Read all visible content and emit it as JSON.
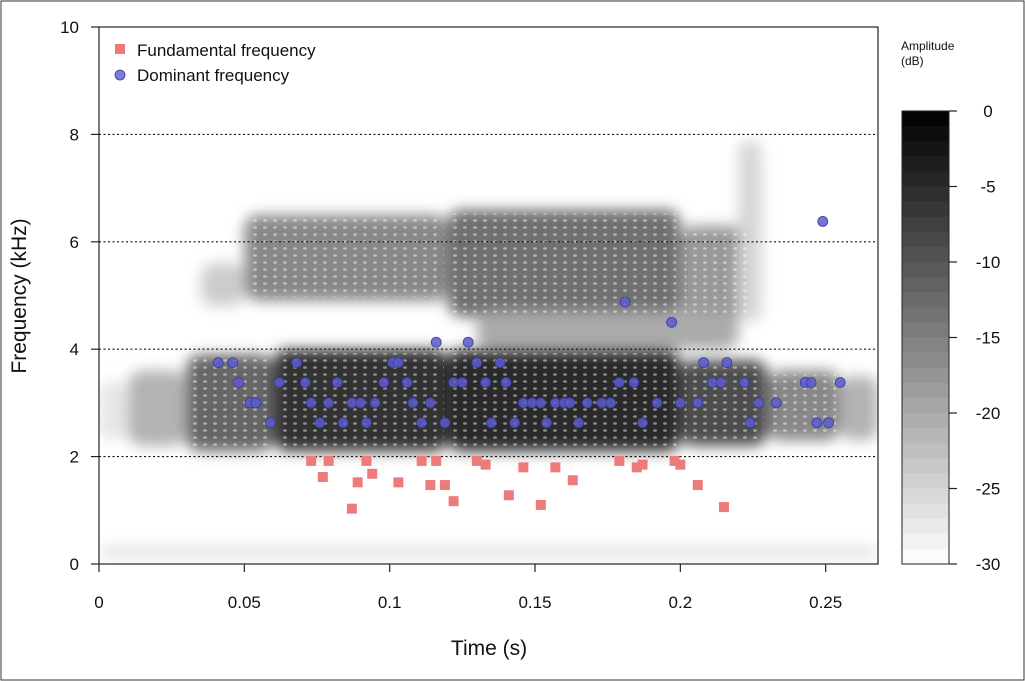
{
  "chart_data": {
    "type": "scatter",
    "background": "spectrogram",
    "xlabel": "Time (s)",
    "ylabel": "Frequency (kHz)",
    "xlim": [
      0,
      0.268
    ],
    "ylim": [
      0,
      10
    ],
    "x_ticks": [
      "0",
      "0.05",
      "0.1",
      "0.15",
      "0.2",
      "0.25"
    ],
    "x_tick_values": [
      0,
      0.05,
      0.1,
      0.15,
      0.2,
      0.25
    ],
    "y_ticks": [
      "0",
      "2",
      "4",
      "6",
      "8",
      "10"
    ],
    "y_tick_values": [
      0,
      2,
      4,
      6,
      8,
      10
    ],
    "gridlines_y": [
      2,
      4,
      6,
      8
    ],
    "grid_style": "dotted horizontal",
    "legend": {
      "placement": "top-left",
      "entries": [
        {
          "label": "Fundamental frequency",
          "marker": "square",
          "color": "#ee7b7b"
        },
        {
          "label": "Dominant frequency",
          "marker": "circle",
          "color": "#5c5ccc"
        }
      ]
    },
    "series": [
      {
        "name": "Fundamental frequency",
        "marker": "square",
        "color": "#ee7b7b",
        "points": [
          [
            0.073,
            1.92
          ],
          [
            0.077,
            1.62
          ],
          [
            0.079,
            1.92
          ],
          [
            0.087,
            1.03
          ],
          [
            0.089,
            1.52
          ],
          [
            0.092,
            1.92
          ],
          [
            0.094,
            1.68
          ],
          [
            0.103,
            1.52
          ],
          [
            0.111,
            1.92
          ],
          [
            0.114,
            1.47
          ],
          [
            0.116,
            1.92
          ],
          [
            0.119,
            1.47
          ],
          [
            0.122,
            1.17
          ],
          [
            0.13,
            1.92
          ],
          [
            0.133,
            1.85
          ],
          [
            0.141,
            1.28
          ],
          [
            0.146,
            1.8
          ],
          [
            0.152,
            1.1
          ],
          [
            0.157,
            1.8
          ],
          [
            0.163,
            1.56
          ],
          [
            0.179,
            1.92
          ],
          [
            0.185,
            1.8
          ],
          [
            0.187,
            1.85
          ],
          [
            0.198,
            1.92
          ],
          [
            0.2,
            1.85
          ],
          [
            0.206,
            1.47
          ],
          [
            0.215,
            1.06
          ]
        ]
      },
      {
        "name": "Dominant frequency",
        "marker": "circle",
        "color": "#5c5ccc",
        "points": [
          [
            0.041,
            3.75
          ],
          [
            0.046,
            3.75
          ],
          [
            0.048,
            3.38
          ],
          [
            0.052,
            3.0
          ],
          [
            0.054,
            3.0
          ],
          [
            0.059,
            2.63
          ],
          [
            0.062,
            3.38
          ],
          [
            0.068,
            3.75
          ],
          [
            0.071,
            3.38
          ],
          [
            0.073,
            3.0
          ],
          [
            0.076,
            2.63
          ],
          [
            0.079,
            3.0
          ],
          [
            0.082,
            3.38
          ],
          [
            0.084,
            2.63
          ],
          [
            0.087,
            3.0
          ],
          [
            0.09,
            3.0
          ],
          [
            0.092,
            2.63
          ],
          [
            0.095,
            3.0
          ],
          [
            0.098,
            3.38
          ],
          [
            0.101,
            3.75
          ],
          [
            0.103,
            3.75
          ],
          [
            0.106,
            3.38
          ],
          [
            0.108,
            3.0
          ],
          [
            0.111,
            2.63
          ],
          [
            0.114,
            3.0
          ],
          [
            0.116,
            4.13
          ],
          [
            0.119,
            2.63
          ],
          [
            0.122,
            3.38
          ],
          [
            0.125,
            3.38
          ],
          [
            0.127,
            4.13
          ],
          [
            0.13,
            3.75
          ],
          [
            0.133,
            3.38
          ],
          [
            0.135,
            2.63
          ],
          [
            0.138,
            3.75
          ],
          [
            0.14,
            3.38
          ],
          [
            0.143,
            2.63
          ],
          [
            0.146,
            3.0
          ],
          [
            0.149,
            3.0
          ],
          [
            0.152,
            3.0
          ],
          [
            0.154,
            2.63
          ],
          [
            0.157,
            3.0
          ],
          [
            0.16,
            3.0
          ],
          [
            0.162,
            3.0
          ],
          [
            0.165,
            2.63
          ],
          [
            0.168,
            3.0
          ],
          [
            0.173,
            3.0
          ],
          [
            0.176,
            3.0
          ],
          [
            0.179,
            3.38
          ],
          [
            0.181,
            4.88
          ],
          [
            0.184,
            3.38
          ],
          [
            0.187,
            2.63
          ],
          [
            0.192,
            3.0
          ],
          [
            0.197,
            4.5
          ],
          [
            0.2,
            3.0
          ],
          [
            0.206,
            3.0
          ],
          [
            0.208,
            3.75
          ],
          [
            0.211,
            3.38
          ],
          [
            0.214,
            3.38
          ],
          [
            0.216,
            3.75
          ],
          [
            0.222,
            3.38
          ],
          [
            0.224,
            2.63
          ],
          [
            0.227,
            3.0
          ],
          [
            0.233,
            3.0
          ],
          [
            0.243,
            3.38
          ],
          [
            0.245,
            3.38
          ],
          [
            0.247,
            2.63
          ],
          [
            0.249,
            6.38
          ],
          [
            0.251,
            2.63
          ],
          [
            0.255,
            3.38
          ]
        ]
      }
    ],
    "colorbar": {
      "title_lines": [
        "Amplitude",
        "(dB)"
      ],
      "range": [
        -30,
        0
      ],
      "ticks": [
        "0",
        "-5",
        "-10",
        "-15",
        "-20",
        "-25",
        "-30"
      ],
      "tick_values": [
        0,
        -5,
        -10,
        -15,
        -20,
        -25,
        -30
      ],
      "color_high": "#000000",
      "color_low": "#ffffff",
      "steps": 30
    },
    "spectrogram_bands": [
      {
        "t0": 0.0,
        "t1": 0.268,
        "f0": 0.1,
        "f1": 0.35,
        "db": -27
      },
      {
        "t0": 0.0,
        "t1": 0.01,
        "f0": 2.3,
        "f1": 3.4,
        "db": -27
      },
      {
        "t0": 0.01,
        "t1": 0.03,
        "f0": 2.2,
        "f1": 3.6,
        "db": -21
      },
      {
        "t0": 0.03,
        "t1": 0.06,
        "f0": 2.1,
        "f1": 3.9,
        "db": -12
      },
      {
        "t0": 0.06,
        "t1": 0.12,
        "f0": 2.1,
        "f1": 4.0,
        "db": -6
      },
      {
        "t0": 0.12,
        "t1": 0.2,
        "f0": 2.1,
        "f1": 4.0,
        "db": -5
      },
      {
        "t0": 0.2,
        "t1": 0.23,
        "f0": 2.2,
        "f1": 3.8,
        "db": -9
      },
      {
        "t0": 0.23,
        "t1": 0.255,
        "f0": 2.3,
        "f1": 3.6,
        "db": -16
      },
      {
        "t0": 0.255,
        "t1": 0.268,
        "f0": 2.3,
        "f1": 3.5,
        "db": -21
      },
      {
        "t0": 0.035,
        "t1": 0.05,
        "f0": 4.8,
        "f1": 5.6,
        "db": -24
      },
      {
        "t0": 0.05,
        "t1": 0.12,
        "f0": 4.9,
        "f1": 6.5,
        "db": -16
      },
      {
        "t0": 0.12,
        "t1": 0.2,
        "f0": 4.6,
        "f1": 6.6,
        "db": -13
      },
      {
        "t0": 0.2,
        "t1": 0.225,
        "f0": 4.6,
        "f1": 6.3,
        "db": -18
      },
      {
        "t0": 0.13,
        "t1": 0.22,
        "f0": 4.0,
        "f1": 4.7,
        "db": -20
      },
      {
        "t0": 0.22,
        "t1": 0.228,
        "f0": 4.5,
        "f1": 7.9,
        "db": -25
      }
    ]
  }
}
